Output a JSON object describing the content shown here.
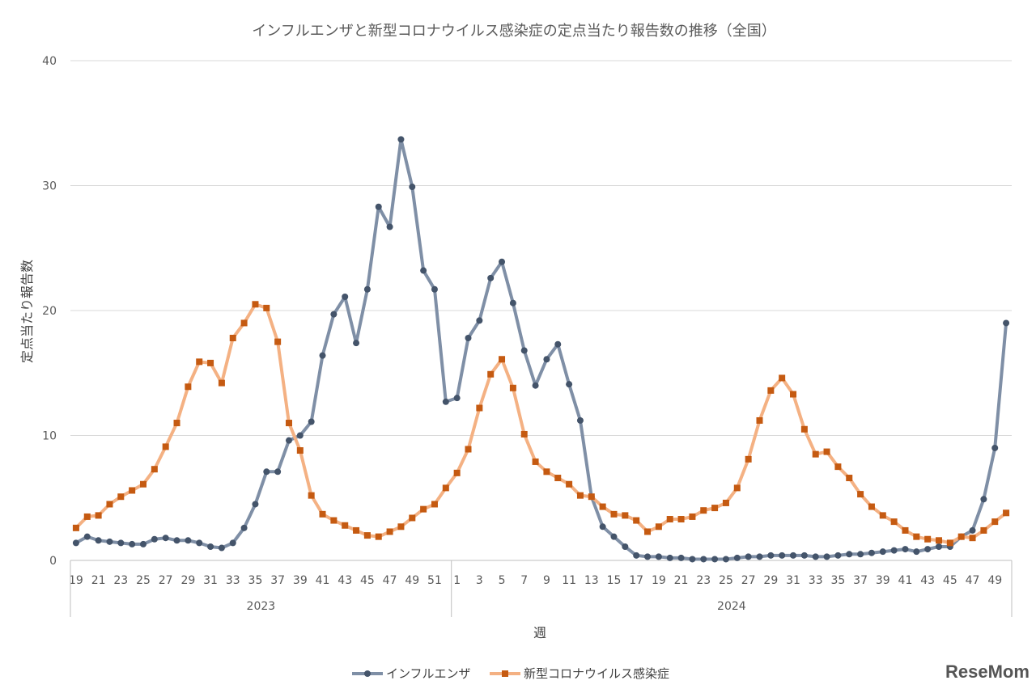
{
  "chart_data": {
    "type": "line",
    "title": "インフルエンザと新型コロナウイルス感染症の定点当たり報告数の推移（全国）",
    "xlabel": "週",
    "ylabel": "定点当たり報告数",
    "ylim": [
      0,
      40
    ],
    "yticks": [
      "0",
      "10",
      "20",
      "30",
      "40"
    ],
    "grid": true,
    "legend_position": "bottom",
    "years": [
      {
        "label": "2023",
        "start_index": 0,
        "end_index": 33
      },
      {
        "label": "2024",
        "start_index": 34,
        "end_index": 83
      }
    ],
    "weeks": [
      19,
      20,
      21,
      22,
      23,
      24,
      25,
      26,
      27,
      28,
      29,
      30,
      31,
      32,
      33,
      34,
      35,
      36,
      37,
      38,
      39,
      40,
      41,
      42,
      43,
      44,
      45,
      46,
      47,
      48,
      49,
      50,
      51,
      52,
      1,
      2,
      3,
      4,
      5,
      6,
      7,
      8,
      9,
      10,
      11,
      12,
      13,
      14,
      15,
      16,
      17,
      18,
      19,
      20,
      21,
      22,
      23,
      24,
      25,
      26,
      27,
      28,
      29,
      30,
      31,
      32,
      33,
      34,
      35,
      36,
      37,
      38,
      39,
      40,
      41,
      42,
      43,
      44,
      45,
      46,
      47,
      48,
      49,
      50
    ],
    "series": [
      {
        "name": "インフルエンザ",
        "color": "#7f8fa6",
        "marker_color": "#44546a",
        "marker": "circle",
        "values": [
          1.4,
          1.9,
          1.6,
          1.5,
          1.4,
          1.3,
          1.3,
          1.7,
          1.8,
          1.6,
          1.6,
          1.4,
          1.1,
          1.0,
          1.4,
          2.6,
          4.5,
          7.1,
          7.1,
          9.6,
          10.0,
          11.1,
          16.4,
          19.7,
          21.1,
          17.4,
          21.7,
          28.3,
          26.7,
          33.7,
          29.9,
          23.2,
          21.7,
          12.7,
          13.0,
          17.8,
          19.2,
          22.6,
          23.9,
          20.6,
          16.8,
          14.0,
          16.1,
          17.3,
          14.1,
          11.2,
          5.1,
          2.7,
          1.9,
          1.1,
          0.4,
          0.3,
          0.3,
          0.2,
          0.2,
          0.1,
          0.1,
          0.1,
          0.1,
          0.2,
          0.3,
          0.3,
          0.4,
          0.4,
          0.4,
          0.4,
          0.3,
          0.3,
          0.4,
          0.5,
          0.5,
          0.6,
          0.7,
          0.8,
          0.9,
          0.7,
          0.9,
          1.1,
          1.1,
          1.9,
          2.4,
          4.9,
          9.0,
          19.0
        ]
      },
      {
        "name": "新型コロナウイルス感染症",
        "color": "#f4b183",
        "marker_color": "#c55a11",
        "marker": "square",
        "values": [
          2.6,
          3.5,
          3.6,
          4.5,
          5.1,
          5.6,
          6.1,
          7.3,
          9.1,
          11.0,
          13.9,
          15.9,
          15.8,
          14.2,
          17.8,
          19.0,
          20.5,
          20.2,
          17.5,
          11.0,
          8.8,
          5.2,
          3.7,
          3.2,
          2.8,
          2.4,
          2.0,
          1.9,
          2.3,
          2.7,
          3.4,
          4.1,
          4.5,
          5.8,
          7.0,
          8.9,
          12.2,
          14.9,
          16.1,
          13.8,
          10.1,
          7.9,
          7.1,
          6.6,
          6.1,
          5.2,
          5.1,
          4.3,
          3.7,
          3.6,
          3.2,
          2.3,
          2.7,
          3.3,
          3.3,
          3.5,
          4.0,
          4.2,
          4.6,
          5.8,
          8.1,
          11.2,
          13.6,
          14.6,
          13.3,
          10.5,
          8.5,
          8.7,
          7.5,
          6.6,
          5.3,
          4.3,
          3.6,
          3.1,
          2.4,
          1.9,
          1.7,
          1.6,
          1.4,
          1.9,
          1.8,
          2.4,
          3.1,
          3.8
        ]
      }
    ]
  },
  "watermark": "ReseMom"
}
